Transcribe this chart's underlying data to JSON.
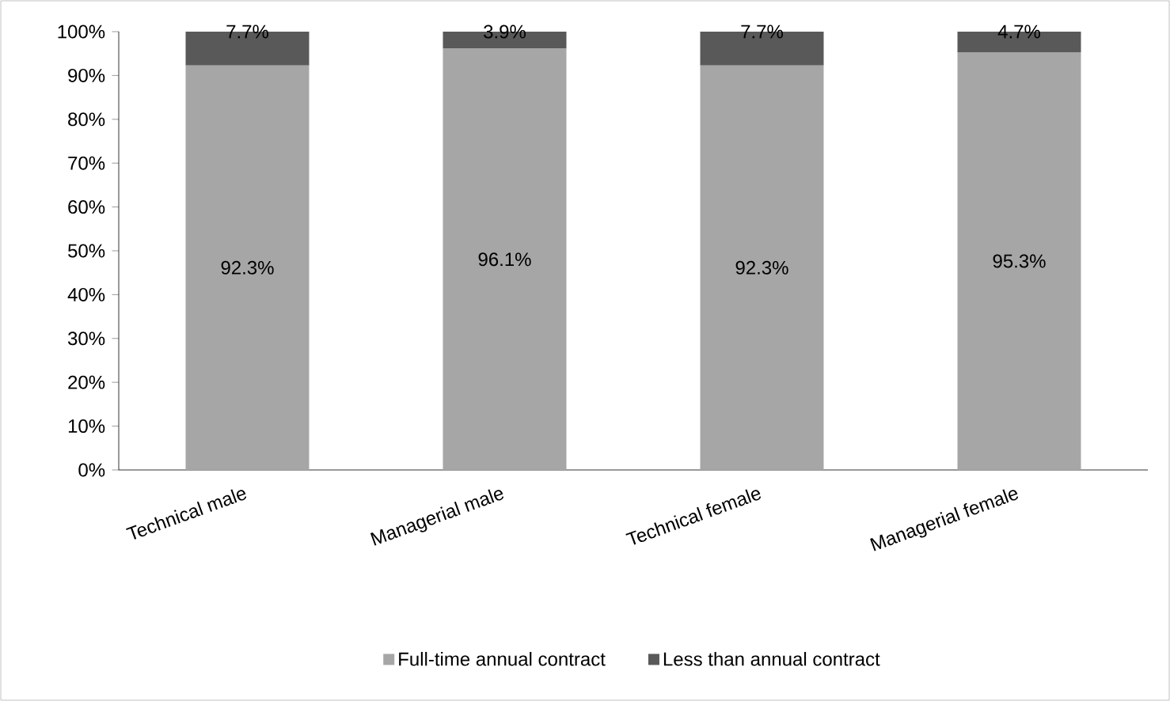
{
  "chart_data": {
    "type": "bar",
    "stacked": true,
    "categories": [
      "Technical male",
      "Managerial male",
      "Technical female",
      "Managerial female"
    ],
    "series": [
      {
        "name": "Full-time annual contract",
        "color": "#a6a6a6",
        "values": [
          92.3,
          96.1,
          92.3,
          95.3
        ],
        "value_labels": [
          "92.3%",
          "96.1%",
          "92.3%",
          "95.3%"
        ]
      },
      {
        "name": "Less than annual contract",
        "color": "#595959",
        "values": [
          7.7,
          3.9,
          7.7,
          4.7
        ],
        "value_labels": [
          "7.7%",
          "3.9%",
          "7.7%",
          "4.7%"
        ]
      }
    ],
    "ylim": [
      0,
      100
    ],
    "yticks": [
      {
        "value": 0,
        "label": "0%"
      },
      {
        "value": 10,
        "label": "10%"
      },
      {
        "value": 20,
        "label": "20%"
      },
      {
        "value": 30,
        "label": "30%"
      },
      {
        "value": 40,
        "label": "40%"
      },
      {
        "value": 50,
        "label": "50%"
      },
      {
        "value": 60,
        "label": "60%"
      },
      {
        "value": 70,
        "label": "70%"
      },
      {
        "value": 80,
        "label": "80%"
      },
      {
        "value": 90,
        "label": "90%"
      },
      {
        "value": 100,
        "label": "100%"
      }
    ],
    "legend": "bottom"
  }
}
